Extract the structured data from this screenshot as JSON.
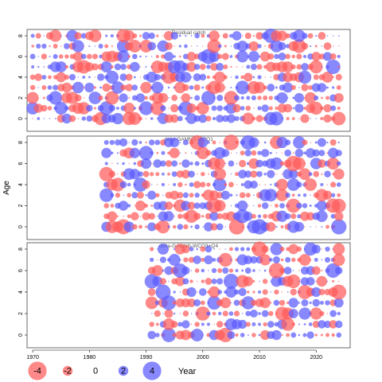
{
  "chart_data": {
    "type": "scatter",
    "subtype": "bubble residual plot",
    "ylabel": "Age",
    "xlabel": "Year",
    "x_ticks": [
      1970,
      1980,
      1990,
      2000,
      2010,
      2020
    ],
    "y_ticks": [
      0,
      2,
      4,
      6,
      8
    ],
    "ages": [
      0,
      1,
      2,
      3,
      4,
      5,
      6,
      7,
      8
    ],
    "xlim": [
      1969,
      2026
    ],
    "ylim": [
      -1,
      9
    ],
    "colors": {
      "negative": "#ff5a5a",
      "positive": "#5a5aff",
      "frame": "#444444"
    },
    "panels": [
      {
        "title": "Residual catch",
        "year_start": 1970,
        "year_end": 2024
      },
      {
        "title": "delta-GAMNS-WCQ1",
        "year_start": 1983,
        "year_end": 2024
      },
      {
        "title": "delta-GAMNS-WCQ3+Q4",
        "year_start": 1991,
        "year_end": 2024
      }
    ],
    "legend": {
      "values": [
        -4,
        -2,
        0,
        2,
        4
      ],
      "labels": [
        "-4",
        "-2",
        "0",
        "2",
        "4"
      ],
      "title": "Year"
    }
  }
}
